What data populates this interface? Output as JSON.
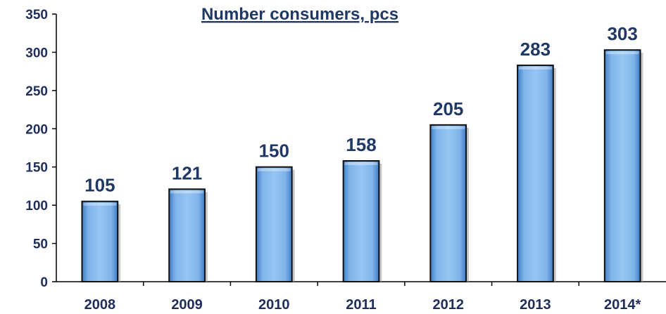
{
  "chart_data": {
    "type": "bar",
    "title": "Number consumers, pcs",
    "categories": [
      "2008",
      "2009",
      "2010",
      "2011",
      "2012",
      "2013",
      "2014*"
    ],
    "values": [
      105,
      121,
      150,
      158,
      205,
      283,
      303
    ],
    "xlabel": "",
    "ylabel": "",
    "ylim": [
      0,
      350
    ],
    "yticks": [
      0,
      50,
      100,
      150,
      200,
      250,
      300,
      350
    ],
    "grid": false,
    "legend": "none",
    "data_labels": true
  },
  "colors": {
    "bar_fill_light": "#8fc0ef",
    "bar_fill_dark": "#3c78c4",
    "bar_outline": "#111111",
    "text": "#1f3864"
  }
}
